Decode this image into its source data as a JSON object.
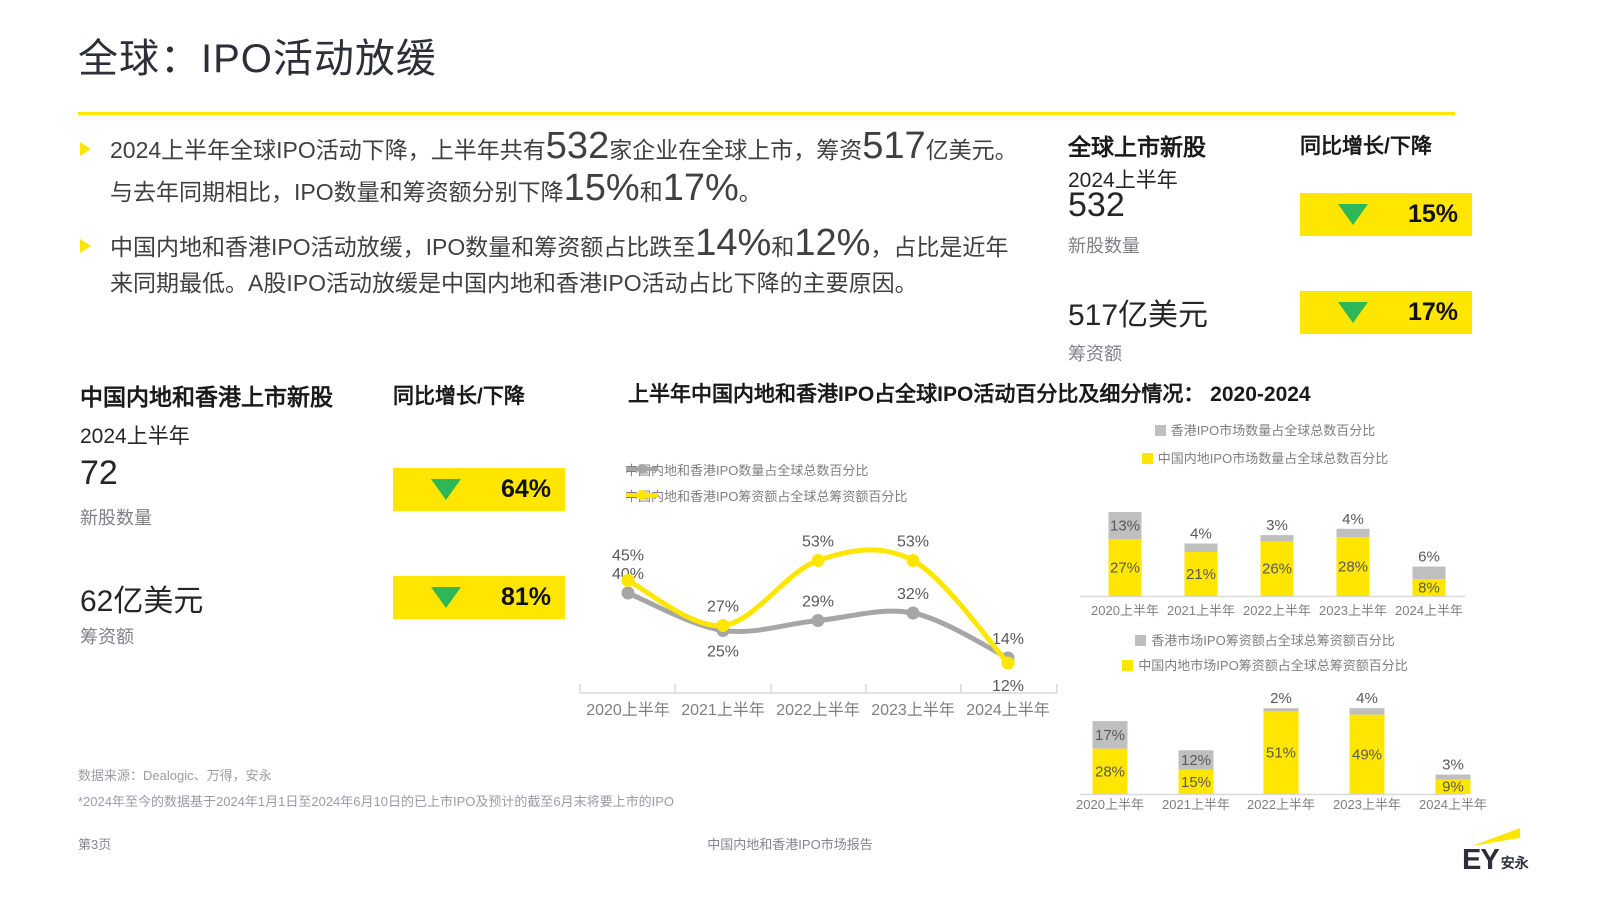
{
  "header": {
    "title": "全球：IPO活动放缓"
  },
  "bullets": [
    {
      "segments": [
        {
          "text": "2024上半年全球IPO活动下降，上半年共有",
          "big": false
        },
        {
          "text": "532",
          "big": true
        },
        {
          "text": "家企业在全球上市，筹资",
          "big": false
        },
        {
          "text": "517",
          "big": true
        },
        {
          "text": "亿美元。与去年同期相比，IPO数量和筹资额分别下降",
          "big": false
        },
        {
          "text": "15%",
          "big": true
        },
        {
          "text": "和",
          "big": false
        },
        {
          "text": "17%",
          "big": true
        },
        {
          "text": "。",
          "big": false
        }
      ]
    },
    {
      "segments": [
        {
          "text": "中国内地和香港IPO活动放缓，IPO数量和筹资额占比跌至",
          "big": false
        },
        {
          "text": "14%",
          "big": true
        },
        {
          "text": "和",
          "big": false
        },
        {
          "text": "12%",
          "big": true
        },
        {
          "text": "，占比是近年来同期最低。A股IPO活动放缓是中国内地和香港IPO活动占比下降的主要原因。",
          "big": false
        }
      ]
    }
  ],
  "stats": {
    "global": {
      "title": "全球上市新股",
      "change_header": "同比增长/下降",
      "period": "2024上半年",
      "metrics": [
        {
          "value": "532",
          "label": "新股数量",
          "direction": "down",
          "change": "15%"
        },
        {
          "value": "517亿美元",
          "label": "筹资额",
          "direction": "down",
          "change": "17%"
        }
      ]
    },
    "china": {
      "title": "中国内地和香港上市新股",
      "change_header": "同比增长/下降",
      "period": "2024上半年",
      "metrics": [
        {
          "value": "72",
          "label": "新股数量",
          "direction": "down",
          "change": "64%"
        },
        {
          "value": "62亿美元",
          "label": "筹资额",
          "direction": "down",
          "change": "81%"
        }
      ]
    }
  },
  "chart_data": [
    {
      "type": "line",
      "title": "上半年中国内地和香港IPO占全球IPO活动百分比及细分情况： 2020-2024",
      "categories": [
        "2020上半年",
        "2021上半年",
        "2022上半年",
        "2023上半年",
        "2024上半年"
      ],
      "series": [
        {
          "name": "中国内地和香港IPO数量占全球总数百分比",
          "color": "#A6A6A6",
          "values": [
            40,
            25,
            29,
            32,
            14
          ]
        },
        {
          "name": "中国内地和香港IPO筹资额占全球总筹资额百分比",
          "color": "#FFE600",
          "values": [
            45,
            27,
            53,
            53,
            12
          ]
        }
      ],
      "unit": "%",
      "ylim": [
        0,
        60
      ],
      "grid": false,
      "data_labels": true,
      "legend_position": "left"
    },
    {
      "type": "stacked-bar",
      "categories": [
        "2020上半年",
        "2021上半年",
        "2022上半年",
        "2023上半年",
        "2024上半年"
      ],
      "series": [
        {
          "name": "香港IPO市场数量占全球总数百分比",
          "color": "#BFBFBF",
          "values": [
            13,
            4,
            3,
            4,
            6
          ]
        },
        {
          "name": "中国内地IPO市场数量占全球总数百分比",
          "color": "#FFE600",
          "values": [
            27,
            21,
            26,
            28,
            8
          ]
        }
      ],
      "unit": "%",
      "ylim": [
        0,
        45
      ],
      "grid": false,
      "data_labels": true,
      "legend_position": "top"
    },
    {
      "type": "stacked-bar",
      "categories": [
        "2020上半年",
        "2021上半年",
        "2022上半年",
        "2023上半年",
        "2024上半年"
      ],
      "series": [
        {
          "name": "香港市场IPO筹资额占全球总筹资额百分比",
          "color": "#BFBFBF",
          "values": [
            17,
            12,
            2,
            4,
            3
          ]
        },
        {
          "name": "中国内地市场IPO筹资额占全球总筹资额百分比",
          "color": "#FFE600",
          "values": [
            28,
            15,
            51,
            49,
            9
          ]
        }
      ],
      "unit": "%",
      "ylim": [
        0,
        55
      ],
      "grid": false,
      "data_labels": true,
      "legend_position": "top"
    }
  ],
  "footer": {
    "source": "数据来源：Dealogic、万得，安永",
    "footnote": "*2024年至今的数据基于2024年1月1日至2024年6月10日的已上市IPO及预计的截至6月末将要上市的IPO",
    "page": "第3页",
    "doc_title": "中国内地和香港IPO市场报告",
    "logo_text": "EY",
    "logo_suffix": "安永"
  },
  "colors": {
    "accent_yellow": "#FFE600",
    "arrow_green": "#2DB757",
    "series_gray": "#BFBFBF",
    "line_gray": "#A6A6A6",
    "text_dark": "#2E2E38",
    "text_gray": "#7F7F87",
    "text_light": "#9B9BA3"
  }
}
